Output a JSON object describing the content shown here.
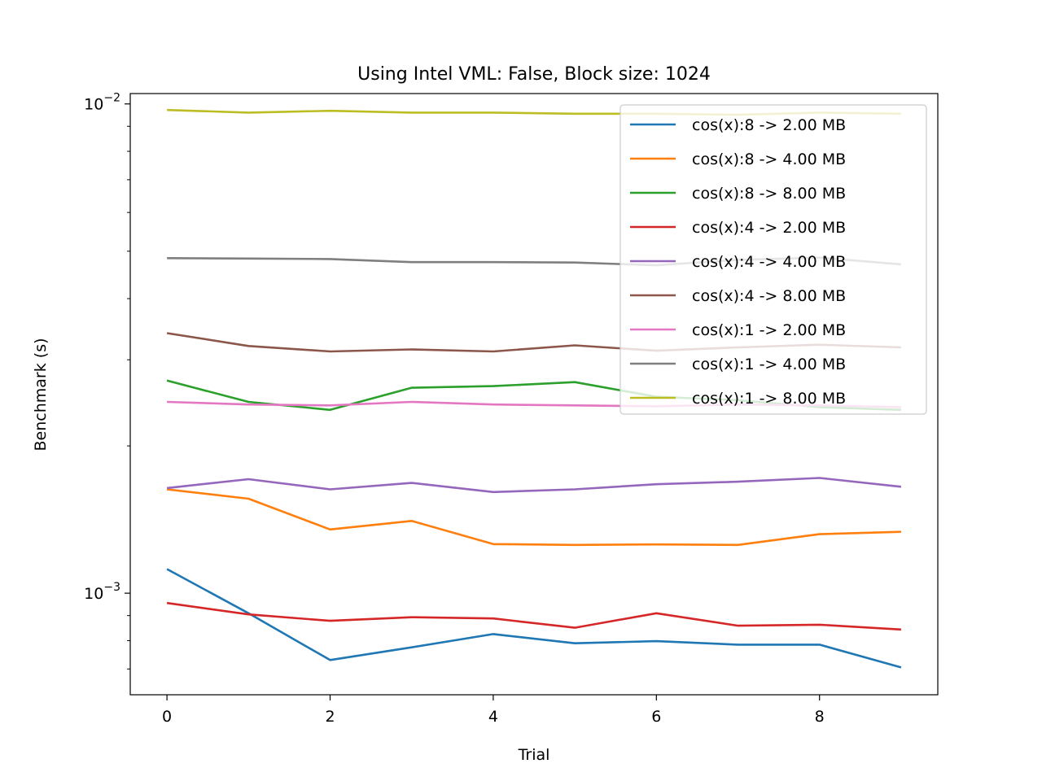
{
  "chart_data": {
    "type": "line",
    "title": "Using Intel VML: False, Block size: 1024",
    "xlabel": "Trial",
    "ylabel": "Benchmark (s)",
    "yscale": "log",
    "xlim": [
      -0.45,
      9.45
    ],
    "ylim": [
      0.00062,
      0.0105
    ],
    "xticks": [
      0,
      2,
      4,
      6,
      8
    ],
    "xtick_labels": [
      "0",
      "2",
      "4",
      "6",
      "8"
    ],
    "yticks_major": [
      0.001,
      0.01
    ],
    "ytick_major_labels": [
      {
        "base": "10",
        "exp": "−3"
      },
      {
        "base": "10",
        "exp": "−2"
      }
    ],
    "legend_position": "upper right",
    "grid": false,
    "x": [
      0,
      1,
      2,
      3,
      4,
      5,
      6,
      7,
      8,
      9
    ],
    "series": [
      {
        "name": "cos(x):8 -> 2.00 MB",
        "color": "#1f77b4",
        "values": [
          0.00112,
          0.00091,
          0.00073,
          0.000775,
          0.000825,
          0.00079,
          0.000798,
          0.000785,
          0.000785,
          0.000705
        ]
      },
      {
        "name": "cos(x):8 -> 4.00 MB",
        "color": "#ff7f0e",
        "values": [
          0.00163,
          0.00156,
          0.00135,
          0.001405,
          0.00126,
          0.001255,
          0.001258,
          0.001255,
          0.00132,
          0.001335
        ]
      },
      {
        "name": "cos(x):8 -> 8.00 MB",
        "color": "#2ca02c",
        "values": [
          0.00272,
          0.00246,
          0.00237,
          0.00263,
          0.00265,
          0.0027,
          0.00252,
          0.00248,
          0.0024,
          0.00237
        ]
      },
      {
        "name": "cos(x):4 -> 2.00 MB",
        "color": "#d62728",
        "values": [
          0.000955,
          0.000905,
          0.000878,
          0.000893,
          0.000888,
          0.00085,
          0.00091,
          0.000858,
          0.000862,
          0.000843
        ]
      },
      {
        "name": "cos(x):4 -> 4.00 MB",
        "color": "#9467bd",
        "values": [
          0.00164,
          0.00171,
          0.00163,
          0.00168,
          0.00161,
          0.00163,
          0.00167,
          0.00169,
          0.00172,
          0.00165
        ]
      },
      {
        "name": "cos(x):4 -> 8.00 MB",
        "color": "#8c564b",
        "values": [
          0.0034,
          0.0032,
          0.00312,
          0.00315,
          0.00312,
          0.00321,
          0.00313,
          0.00318,
          0.00322,
          0.00318
        ]
      },
      {
        "name": "cos(x):1 -> 2.00 MB",
        "color": "#e377c2",
        "values": [
          0.00246,
          0.00243,
          0.00242,
          0.00246,
          0.00243,
          0.00242,
          0.00241,
          0.00243,
          0.00242,
          0.0024
        ]
      },
      {
        "name": "cos(x):1 -> 4.00 MB",
        "color": "#7f7f7f",
        "values": [
          0.00484,
          0.00483,
          0.00482,
          0.00475,
          0.00475,
          0.00474,
          0.00468,
          0.0048,
          0.00485,
          0.0047
        ]
      },
      {
        "name": "cos(x):1 -> 8.00 MB",
        "color": "#bcbd22",
        "values": [
          0.00972,
          0.0096,
          0.00968,
          0.0096,
          0.0096,
          0.00955,
          0.00955,
          0.0095,
          0.0096,
          0.00955
        ]
      }
    ]
  }
}
